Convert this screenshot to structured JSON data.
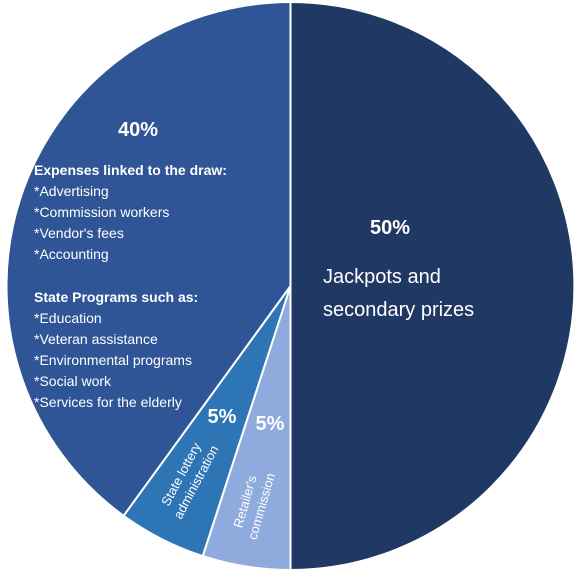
{
  "chart_data": {
    "type": "pie",
    "slices": [
      {
        "value": 50,
        "percent_label": "50%",
        "label_lines": [
          "Jackpots and",
          "secondary prizes"
        ],
        "color": "#203864"
      },
      {
        "value": 5,
        "percent_label": "5%",
        "label_lines": [
          "Retailer's",
          "commission"
        ],
        "color": "#8faadc"
      },
      {
        "value": 5,
        "percent_label": "5%",
        "label_lines": [
          "State lottery",
          "administration"
        ],
        "color": "#2e75b6"
      },
      {
        "value": 40,
        "percent_label": "40%",
        "color": "#2f5597",
        "groups": [
          {
            "heading": "Expenses linked to the draw:",
            "items": [
              "*Advertising",
              "*Commission workers",
              "*Vendor's fees",
              "*Accounting"
            ]
          },
          {
            "heading": "State Programs such as:",
            "items": [
              "*Education",
              "*Veteran assistance",
              "*Environmental programs",
              "*Social work",
              "*Services for the elderly"
            ]
          }
        ]
      }
    ],
    "start_angle_deg": 0,
    "direction": "clockwise",
    "slice_border_color": "#ffffff"
  }
}
